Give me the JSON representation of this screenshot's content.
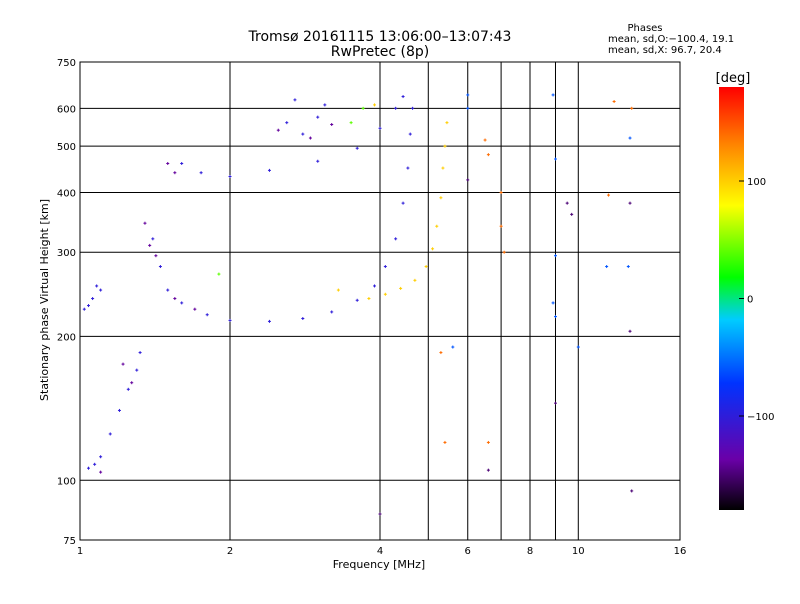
{
  "chart_data": {
    "type": "scatter",
    "title": "Tromsø 20161115 13:06:00–13:07:43",
    "subtitle": "RwPretec (8p)",
    "xlabel": "Frequency [MHz]",
    "ylabel": "Stationary phase Virtual Height [km]",
    "x_scale": "log",
    "y_scale": "log",
    "xlim": [
      1,
      16
    ],
    "ylim": [
      75,
      750
    ],
    "x_ticks": [
      1,
      2,
      4,
      6,
      8,
      10,
      16
    ],
    "x_tick_labels": [
      "1",
      "2",
      "4",
      "6",
      "8",
      "10",
      "16"
    ],
    "x_grid_extra": [
      5,
      7,
      9
    ],
    "y_ticks": [
      75,
      100,
      200,
      300,
      400,
      500,
      600,
      750
    ],
    "y_tick_labels": [
      "75",
      "100",
      "200",
      "300",
      "400",
      "500",
      "600",
      "750"
    ],
    "grid": true,
    "stats": {
      "heading": "Phases",
      "line_o": "mean, sd,O:−100.4, 19.1",
      "line_x": "mean, sd,X:  96.7, 20.4"
    },
    "colorbar": {
      "label": "[deg]",
      "min": -180,
      "max": 180,
      "ticks": [
        -100,
        0,
        100
      ],
      "tick_labels": [
        "−100",
        "0",
        "100"
      ]
    },
    "series": [
      {
        "phase": -100,
        "points": [
          [
            1.02,
            228
          ],
          [
            1.04,
            232
          ],
          [
            1.06,
            240
          ],
          [
            1.08,
            255
          ],
          [
            1.1,
            250
          ],
          [
            1.04,
            106
          ],
          [
            1.07,
            108
          ],
          [
            1.1,
            112
          ],
          [
            1.15,
            125
          ],
          [
            1.2,
            140
          ],
          [
            1.25,
            155
          ],
          [
            1.3,
            170
          ],
          [
            1.32,
            185
          ],
          [
            1.4,
            320
          ],
          [
            1.45,
            280
          ],
          [
            1.5,
            250
          ],
          [
            1.6,
            235
          ],
          [
            1.8,
            222
          ],
          [
            2.0,
            216
          ],
          [
            2.4,
            215
          ],
          [
            2.8,
            218
          ],
          [
            3.2,
            225
          ],
          [
            3.6,
            238
          ],
          [
            3.9,
            255
          ],
          [
            4.1,
            280
          ],
          [
            4.3,
            320
          ],
          [
            4.45,
            380
          ],
          [
            4.55,
            450
          ],
          [
            4.6,
            530
          ],
          [
            4.65,
            600
          ],
          [
            1.6,
            460
          ],
          [
            1.75,
            440
          ],
          [
            2.0,
            432
          ],
          [
            2.4,
            445
          ],
          [
            3.0,
            465
          ],
          [
            3.6,
            495
          ],
          [
            4.0,
            545
          ],
          [
            4.3,
            600
          ],
          [
            4.45,
            635
          ],
          [
            2.6,
            560
          ],
          [
            2.8,
            530
          ],
          [
            3.0,
            575
          ],
          [
            2.7,
            625
          ],
          [
            3.1,
            610
          ]
        ]
      },
      {
        "phase": -140,
        "points": [
          [
            1.35,
            345
          ],
          [
            1.38,
            310
          ],
          [
            1.42,
            295
          ],
          [
            1.55,
            240
          ],
          [
            1.7,
            228
          ],
          [
            1.5,
            460
          ],
          [
            1.55,
            440
          ],
          [
            2.5,
            540
          ],
          [
            2.9,
            520
          ],
          [
            3.2,
            555
          ],
          [
            1.22,
            175
          ],
          [
            1.27,
            160
          ],
          [
            1.1,
            104
          ]
        ]
      },
      {
        "phase": 100,
        "points": [
          [
            3.8,
            240
          ],
          [
            4.1,
            245
          ],
          [
            4.4,
            252
          ],
          [
            4.7,
            262
          ],
          [
            4.95,
            280
          ],
          [
            5.1,
            305
          ],
          [
            5.2,
            340
          ],
          [
            5.3,
            390
          ],
          [
            5.35,
            450
          ],
          [
            5.4,
            500
          ],
          [
            5.45,
            560
          ],
          [
            3.9,
            610
          ],
          [
            3.3,
            250
          ]
        ]
      },
      {
        "phase": 40,
        "points": [
          [
            3.5,
            560
          ],
          [
            3.7,
            600
          ],
          [
            1.9,
            270
          ]
        ]
      },
      {
        "phase": 140,
        "points": [
          [
            6.5,
            515
          ],
          [
            6.6,
            480
          ],
          [
            7.0,
            400
          ],
          [
            7.0,
            340
          ],
          [
            7.1,
            300
          ],
          [
            5.3,
            185
          ],
          [
            5.4,
            120
          ],
          [
            6.6,
            120
          ],
          [
            11.8,
            620
          ],
          [
            12.8,
            600
          ],
          [
            11.5,
            395
          ]
        ]
      },
      {
        "phase": -60,
        "points": [
          [
            6.0,
            640
          ],
          [
            6.0,
            600
          ],
          [
            8.9,
            640
          ],
          [
            9.0,
            470
          ],
          [
            9.0,
            295
          ],
          [
            8.9,
            235
          ],
          [
            9.0,
            220
          ],
          [
            10.0,
            190
          ],
          [
            11.4,
            280
          ],
          [
            12.6,
            280
          ],
          [
            5.6,
            190
          ],
          [
            12.7,
            520
          ]
        ]
      },
      {
        "phase": -150,
        "points": [
          [
            6.0,
            425
          ],
          [
            9.5,
            380
          ],
          [
            9.7,
            360
          ],
          [
            9.0,
            145
          ],
          [
            12.7,
            380
          ],
          [
            12.7,
            205
          ],
          [
            6.6,
            105
          ],
          [
            4.0,
            85
          ],
          [
            12.8,
            95
          ]
        ]
      }
    ]
  }
}
